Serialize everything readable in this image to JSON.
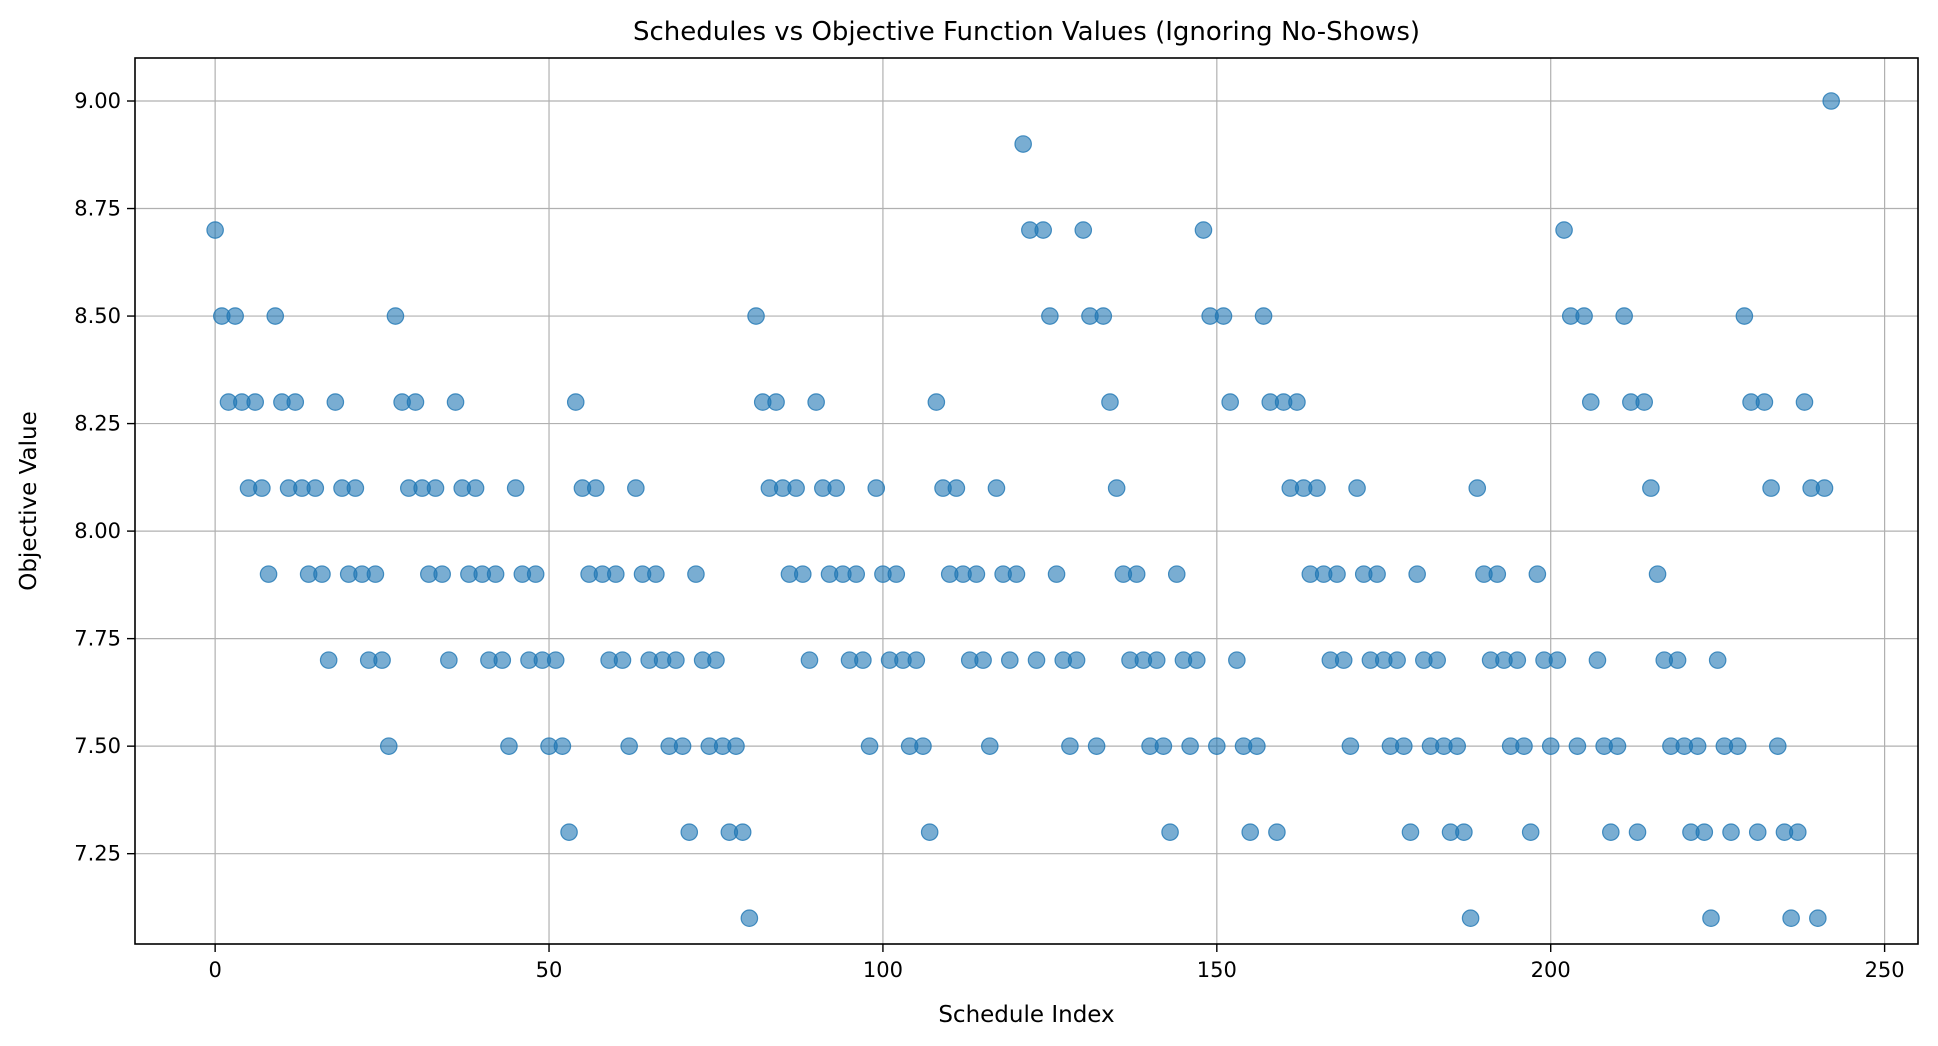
{
  "chart_data": {
    "type": "scatter",
    "title": "Schedules vs Objective Function Values (Ignoring No-Shows)",
    "xlabel": "Schedule Index",
    "ylabel": "Objective Value",
    "xlim": [
      -12,
      255
    ],
    "ylim": [
      7.04,
      9.1
    ],
    "xticks": [
      0,
      50,
      100,
      150,
      200,
      250
    ],
    "xtick_labels": [
      "0",
      "50",
      "100",
      "150",
      "200",
      "250"
    ],
    "yticks": [
      7.25,
      7.5,
      7.75,
      8.0,
      8.25,
      8.5,
      8.75,
      9.0
    ],
    "ytick_labels": [
      "7.25",
      "7.50",
      "7.75",
      "8.00",
      "8.25",
      "8.50",
      "8.75",
      "9.00"
    ],
    "grid": true,
    "color": "#1f77b4",
    "series": [
      {
        "values": [
          [
            0,
            8.7
          ],
          [
            1,
            8.5
          ],
          [
            2,
            8.3
          ],
          [
            3,
            8.5
          ],
          [
            4,
            8.3
          ],
          [
            5,
            8.1
          ],
          [
            6,
            8.3
          ],
          [
            7,
            8.1
          ],
          [
            8,
            7.9
          ],
          [
            9,
            8.5
          ],
          [
            10,
            8.3
          ],
          [
            11,
            8.1
          ],
          [
            12,
            8.3
          ],
          [
            13,
            8.1
          ],
          [
            14,
            7.9
          ],
          [
            15,
            8.1
          ],
          [
            16,
            7.9
          ],
          [
            17,
            7.7
          ],
          [
            18,
            8.3
          ],
          [
            19,
            8.1
          ],
          [
            20,
            7.9
          ],
          [
            21,
            8.1
          ],
          [
            22,
            7.9
          ],
          [
            23,
            7.7
          ],
          [
            24,
            7.9
          ],
          [
            25,
            7.7
          ],
          [
            26,
            7.5
          ],
          [
            27,
            8.5
          ],
          [
            28,
            8.3
          ],
          [
            29,
            8.1
          ],
          [
            30,
            8.3
          ],
          [
            31,
            8.1
          ],
          [
            32,
            7.9
          ],
          [
            33,
            8.1
          ],
          [
            34,
            7.9
          ],
          [
            35,
            7.7
          ],
          [
            36,
            8.3
          ],
          [
            37,
            8.1
          ],
          [
            38,
            7.9
          ],
          [
            39,
            8.1
          ],
          [
            40,
            7.9
          ],
          [
            41,
            7.7
          ],
          [
            42,
            7.9
          ],
          [
            43,
            7.7
          ],
          [
            44,
            7.5
          ],
          [
            45,
            8.1
          ],
          [
            46,
            7.9
          ],
          [
            47,
            7.7
          ],
          [
            48,
            7.9
          ],
          [
            49,
            7.7
          ],
          [
            50,
            7.5
          ],
          [
            51,
            7.7
          ],
          [
            52,
            7.5
          ],
          [
            53,
            7.3
          ],
          [
            54,
            8.3
          ],
          [
            55,
            8.1
          ],
          [
            56,
            7.9
          ],
          [
            57,
            8.1
          ],
          [
            58,
            7.9
          ],
          [
            59,
            7.7
          ],
          [
            60,
            7.9
          ],
          [
            61,
            7.7
          ],
          [
            62,
            7.5
          ],
          [
            63,
            8.1
          ],
          [
            64,
            7.9
          ],
          [
            65,
            7.7
          ],
          [
            66,
            7.9
          ],
          [
            67,
            7.7
          ],
          [
            68,
            7.5
          ],
          [
            69,
            7.7
          ],
          [
            70,
            7.5
          ],
          [
            71,
            7.3
          ],
          [
            72,
            7.9
          ],
          [
            73,
            7.7
          ],
          [
            74,
            7.5
          ],
          [
            75,
            7.7
          ],
          [
            76,
            7.5
          ],
          [
            77,
            7.3
          ],
          [
            78,
            7.5
          ],
          [
            79,
            7.3
          ],
          [
            80,
            7.1
          ],
          [
            81,
            8.5
          ],
          [
            82,
            8.3
          ],
          [
            83,
            8.1
          ],
          [
            84,
            8.3
          ],
          [
            85,
            8.1
          ],
          [
            86,
            7.9
          ],
          [
            87,
            8.1
          ],
          [
            88,
            7.9
          ],
          [
            89,
            7.7
          ],
          [
            90,
            8.3
          ],
          [
            91,
            8.1
          ],
          [
            92,
            7.9
          ],
          [
            93,
            8.1
          ],
          [
            94,
            7.9
          ],
          [
            95,
            7.7
          ],
          [
            96,
            7.9
          ],
          [
            97,
            7.7
          ],
          [
            98,
            7.5
          ],
          [
            99,
            8.1
          ],
          [
            100,
            7.9
          ],
          [
            101,
            7.7
          ],
          [
            102,
            7.9
          ],
          [
            103,
            7.7
          ],
          [
            104,
            7.5
          ],
          [
            105,
            7.7
          ],
          [
            106,
            7.5
          ],
          [
            107,
            7.3
          ],
          [
            108,
            8.3
          ],
          [
            109,
            8.1
          ],
          [
            110,
            7.9
          ],
          [
            111,
            8.1
          ],
          [
            112,
            7.9
          ],
          [
            113,
            7.7
          ],
          [
            114,
            7.9
          ],
          [
            115,
            7.7
          ],
          [
            116,
            7.5
          ],
          [
            117,
            8.1
          ],
          [
            118,
            7.9
          ],
          [
            119,
            7.7
          ],
          [
            120,
            7.9
          ],
          [
            121,
            8.9
          ],
          [
            122,
            8.7
          ],
          [
            123,
            7.7
          ],
          [
            124,
            8.7
          ],
          [
            125,
            8.5
          ],
          [
            126,
            7.9
          ],
          [
            127,
            7.7
          ],
          [
            128,
            7.5
          ],
          [
            129,
            7.7
          ],
          [
            130,
            8.7
          ],
          [
            131,
            8.5
          ],
          [
            132,
            7.5
          ],
          [
            133,
            8.5
          ],
          [
            134,
            8.3
          ],
          [
            135,
            8.1
          ],
          [
            136,
            7.9
          ],
          [
            137,
            7.7
          ],
          [
            138,
            7.9
          ],
          [
            139,
            7.7
          ],
          [
            140,
            7.5
          ],
          [
            141,
            7.7
          ],
          [
            142,
            7.5
          ],
          [
            143,
            7.3
          ],
          [
            144,
            7.9
          ],
          [
            145,
            7.7
          ],
          [
            146,
            7.5
          ],
          [
            147,
            7.7
          ],
          [
            148,
            8.7
          ],
          [
            149,
            8.5
          ],
          [
            150,
            7.5
          ],
          [
            151,
            8.5
          ],
          [
            152,
            8.3
          ],
          [
            153,
            7.7
          ],
          [
            154,
            7.5
          ],
          [
            155,
            7.3
          ],
          [
            156,
            7.5
          ],
          [
            157,
            8.5
          ],
          [
            158,
            8.3
          ],
          [
            159,
            7.3
          ],
          [
            160,
            8.3
          ],
          [
            161,
            8.1
          ],
          [
            162,
            8.3
          ],
          [
            163,
            8.1
          ],
          [
            164,
            7.9
          ],
          [
            165,
            8.1
          ],
          [
            166,
            7.9
          ],
          [
            167,
            7.7
          ],
          [
            168,
            7.9
          ],
          [
            169,
            7.7
          ],
          [
            170,
            7.5
          ],
          [
            171,
            8.1
          ],
          [
            172,
            7.9
          ],
          [
            173,
            7.7
          ],
          [
            174,
            7.9
          ],
          [
            175,
            7.7
          ],
          [
            176,
            7.5
          ],
          [
            177,
            7.7
          ],
          [
            178,
            7.5
          ],
          [
            179,
            7.3
          ],
          [
            180,
            7.9
          ],
          [
            181,
            7.7
          ],
          [
            182,
            7.5
          ],
          [
            183,
            7.7
          ],
          [
            184,
            7.5
          ],
          [
            185,
            7.3
          ],
          [
            186,
            7.5
          ],
          [
            187,
            7.3
          ],
          [
            188,
            7.1
          ],
          [
            189,
            8.1
          ],
          [
            190,
            7.9
          ],
          [
            191,
            7.7
          ],
          [
            192,
            7.9
          ],
          [
            193,
            7.7
          ],
          [
            194,
            7.5
          ],
          [
            195,
            7.7
          ],
          [
            196,
            7.5
          ],
          [
            197,
            7.3
          ],
          [
            198,
            7.9
          ],
          [
            199,
            7.7
          ],
          [
            200,
            7.5
          ],
          [
            201,
            7.7
          ],
          [
            202,
            8.7
          ],
          [
            203,
            8.5
          ],
          [
            204,
            7.5
          ],
          [
            205,
            8.5
          ],
          [
            206,
            8.3
          ],
          [
            207,
            7.7
          ],
          [
            208,
            7.5
          ],
          [
            209,
            7.3
          ],
          [
            210,
            7.5
          ],
          [
            211,
            8.5
          ],
          [
            212,
            8.3
          ],
          [
            213,
            7.3
          ],
          [
            214,
            8.3
          ],
          [
            215,
            8.1
          ],
          [
            216,
            7.9
          ],
          [
            217,
            7.7
          ],
          [
            218,
            7.5
          ],
          [
            219,
            7.7
          ],
          [
            220,
            7.5
          ],
          [
            221,
            7.3
          ],
          [
            222,
            7.5
          ],
          [
            223,
            7.3
          ],
          [
            224,
            7.1
          ],
          [
            225,
            7.7
          ],
          [
            226,
            7.5
          ],
          [
            227,
            7.3
          ],
          [
            228,
            7.5
          ],
          [
            229,
            8.5
          ],
          [
            230,
            8.3
          ],
          [
            231,
            7.3
          ],
          [
            232,
            8.3
          ],
          [
            233,
            8.1
          ],
          [
            234,
            7.5
          ],
          [
            235,
            7.3
          ],
          [
            236,
            7.1
          ],
          [
            237,
            7.3
          ],
          [
            238,
            8.3
          ],
          [
            239,
            8.1
          ],
          [
            240,
            7.1
          ],
          [
            241,
            8.1
          ],
          [
            242,
            9.0
          ]
        ]
      }
    ]
  }
}
